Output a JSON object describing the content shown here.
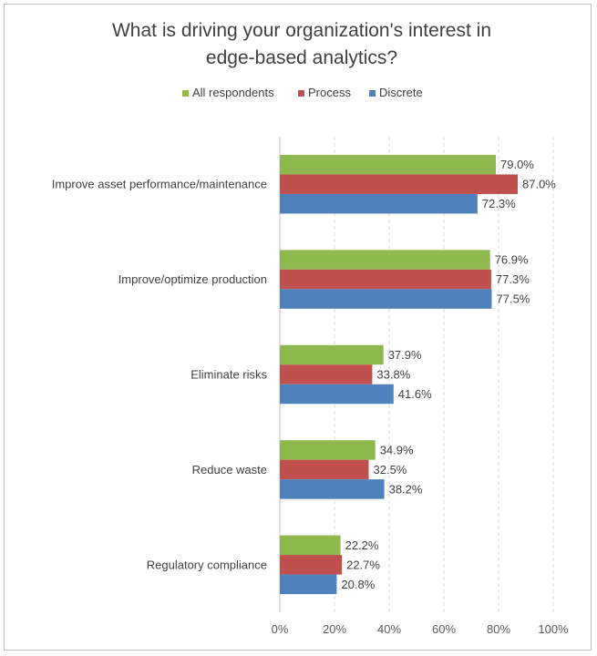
{
  "chart_data": {
    "type": "bar",
    "orientation": "horizontal",
    "title_lines": [
      "What is driving your organization's interest in",
      "edge-based analytics?"
    ],
    "categories": [
      "Improve asset performance/maintenance",
      "Improve/optimize production",
      "Eliminate risks",
      "Reduce waste",
      "Regulatory compliance"
    ],
    "series": [
      {
        "name": "All respondents",
        "color": "#8fb94f",
        "values": [
          79.0,
          76.9,
          37.9,
          34.9,
          22.2
        ]
      },
      {
        "name": "Process",
        "color": "#c0504d",
        "values": [
          87.0,
          77.3,
          33.8,
          32.5,
          22.7
        ]
      },
      {
        "name": "Discrete",
        "color": "#4f81bd",
        "values": [
          72.3,
          77.5,
          41.6,
          38.2,
          20.8
        ]
      }
    ],
    "xlim": [
      0,
      100
    ],
    "x_ticks": [
      "0%",
      "20%",
      "40%",
      "60%",
      "80%",
      "100%"
    ],
    "data_label_format": "0.0%",
    "grid": true,
    "legend_position": "top"
  }
}
